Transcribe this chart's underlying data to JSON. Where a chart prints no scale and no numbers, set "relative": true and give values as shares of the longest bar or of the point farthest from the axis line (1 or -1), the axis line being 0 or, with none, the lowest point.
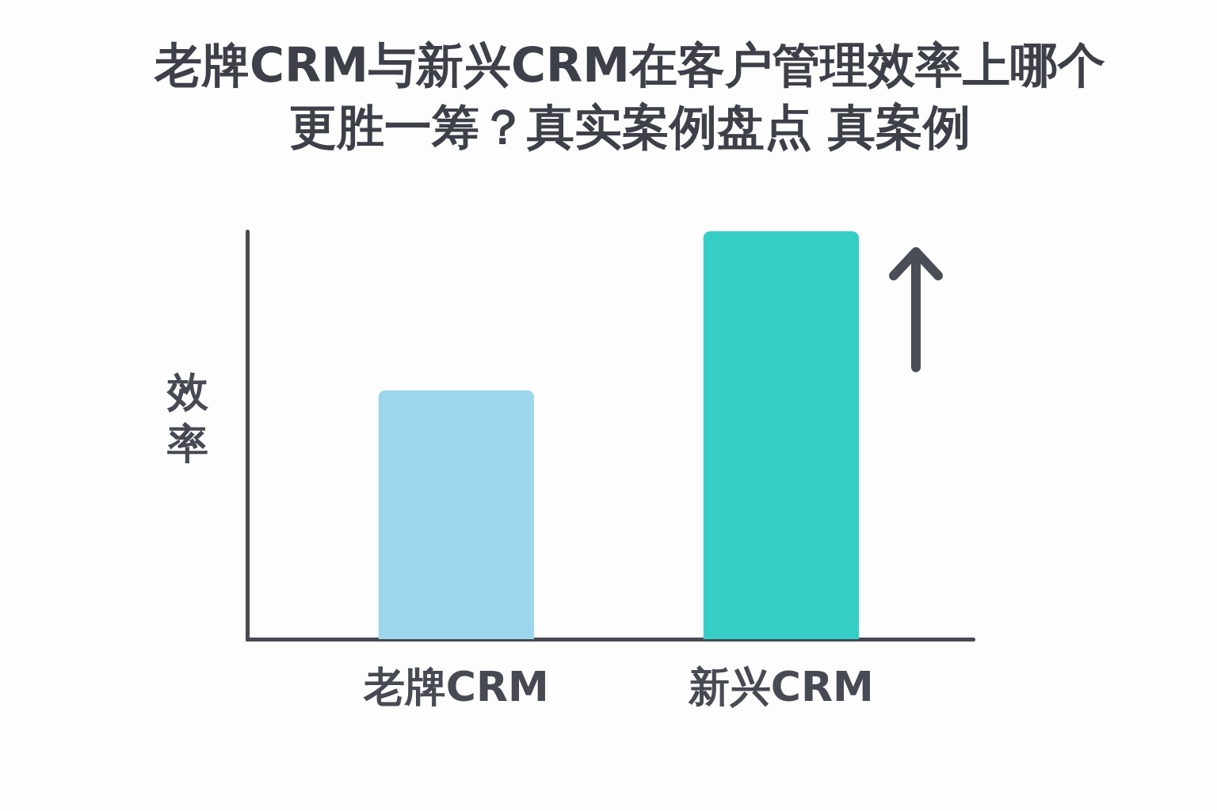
{
  "chart_data": {
    "type": "bar",
    "title": "老牌CRM与新兴CRM在客户管理效率上哪个更胜一筹？真实案例盘点 真案例",
    "ylabel": "效率",
    "categories": [
      "老牌CRM",
      "新兴CRM"
    ],
    "values": [
      0.61,
      1
    ],
    "colors": [
      "#9dd6ec",
      "#36cdc7"
    ],
    "relative": true
  }
}
